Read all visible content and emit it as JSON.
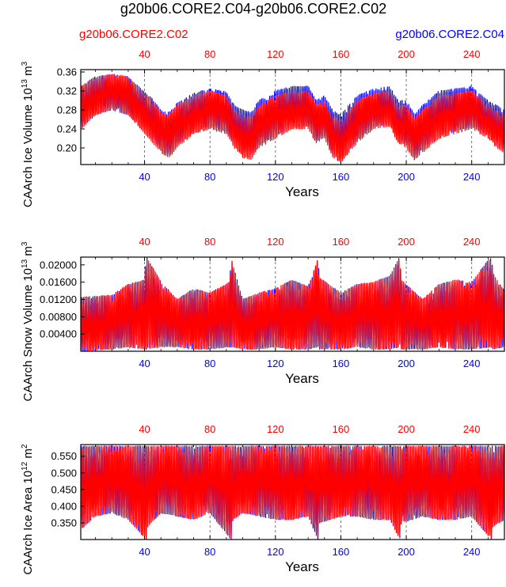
{
  "figure": {
    "title": "g20b06.CORE2.C04-g20b06.CORE2.C02",
    "legend_left": "g20b06.CORE2.C02",
    "legend_right": "g20b06.CORE2.C04",
    "colors": {
      "case_c02": "#ff0000",
      "case_c04": "#0000ff",
      "axis": "#000000"
    }
  },
  "chart_data": [
    {
      "type": "line",
      "ylabel": "CAArch Ice Volume 10",
      "ylabel_exp": "13",
      "ylabel_unit": "m",
      "ylabel_unit_exp": "3",
      "xlabel": "Years",
      "xlim": [
        1,
        260
      ],
      "ylim": [
        0.165,
        0.365
      ],
      "x_ticks": [
        40,
        80,
        120,
        160,
        200,
        240
      ],
      "y_ticks": [
        "0.20",
        "0.24",
        "0.28",
        "0.32",
        "0.36"
      ],
      "envelope_x": [
        1,
        10,
        20,
        30,
        40,
        45,
        50,
        55,
        60,
        70,
        80,
        90,
        95,
        100,
        105,
        110,
        120,
        130,
        140,
        145,
        150,
        155,
        160,
        170,
        180,
        190,
        195,
        200,
        205,
        210,
        220,
        230,
        240,
        250,
        255,
        260
      ],
      "series": [
        {
          "name": "g20b06.CORE2.C02",
          "max": [
            0.33,
            0.35,
            0.355,
            0.35,
            0.315,
            0.3,
            0.275,
            0.27,
            0.29,
            0.31,
            0.32,
            0.31,
            0.28,
            0.27,
            0.265,
            0.29,
            0.31,
            0.32,
            0.32,
            0.29,
            0.3,
            0.27,
            0.26,
            0.3,
            0.315,
            0.32,
            0.29,
            0.29,
            0.26,
            0.28,
            0.31,
            0.315,
            0.32,
            0.29,
            0.28,
            0.27
          ],
          "min": [
            0.24,
            0.27,
            0.28,
            0.27,
            0.23,
            0.21,
            0.19,
            0.18,
            0.2,
            0.23,
            0.24,
            0.23,
            0.2,
            0.18,
            0.175,
            0.2,
            0.22,
            0.24,
            0.24,
            0.21,
            0.22,
            0.18,
            0.17,
            0.21,
            0.24,
            0.245,
            0.21,
            0.2,
            0.175,
            0.19,
            0.22,
            0.23,
            0.24,
            0.22,
            0.2,
            0.19
          ]
        },
        {
          "name": "g20b06.CORE2.C04",
          "max": [
            0.33,
            0.35,
            0.355,
            0.35,
            0.317,
            0.303,
            0.28,
            0.275,
            0.295,
            0.315,
            0.325,
            0.318,
            0.29,
            0.28,
            0.275,
            0.3,
            0.32,
            0.33,
            0.33,
            0.3,
            0.31,
            0.28,
            0.27,
            0.31,
            0.325,
            0.33,
            0.3,
            0.3,
            0.27,
            0.29,
            0.32,
            0.325,
            0.33,
            0.3,
            0.29,
            0.28
          ],
          "min": [
            0.24,
            0.27,
            0.28,
            0.27,
            0.235,
            0.215,
            0.195,
            0.185,
            0.205,
            0.235,
            0.245,
            0.235,
            0.205,
            0.185,
            0.18,
            0.205,
            0.225,
            0.245,
            0.245,
            0.215,
            0.225,
            0.185,
            0.175,
            0.215,
            0.245,
            0.25,
            0.215,
            0.205,
            0.18,
            0.195,
            0.225,
            0.235,
            0.245,
            0.225,
            0.205,
            0.195
          ]
        }
      ]
    },
    {
      "type": "line",
      "ylabel": "CAArch Snow Volume 10",
      "ylabel_exp": "13",
      "ylabel_unit": "m",
      "ylabel_unit_exp": "3",
      "xlabel": "Years",
      "xlim": [
        1,
        260
      ],
      "ylim": [
        0.0,
        0.0218
      ],
      "x_ticks": [
        40,
        80,
        120,
        160,
        200,
        240
      ],
      "y_ticks": [
        "0.00400",
        "0.00800",
        "0.01200",
        "0.01600",
        "0.02000"
      ],
      "envelope_x": [
        1,
        20,
        30,
        40,
        41,
        50,
        60,
        70,
        80,
        92,
        93,
        100,
        110,
        120,
        130,
        140,
        146,
        147,
        160,
        170,
        180,
        190,
        196,
        197,
        210,
        220,
        230,
        240,
        252,
        253,
        260
      ],
      "series": [
        {
          "name": "g20b06.CORE2.C02",
          "max": [
            0.0125,
            0.013,
            0.0155,
            0.0165,
            0.022,
            0.016,
            0.012,
            0.0145,
            0.0135,
            0.016,
            0.0215,
            0.012,
            0.0135,
            0.0145,
            0.0165,
            0.015,
            0.0215,
            0.017,
            0.0135,
            0.0155,
            0.016,
            0.0175,
            0.022,
            0.0165,
            0.012,
            0.0155,
            0.0165,
            0.016,
            0.022,
            0.018,
            0.014
          ],
          "min": [
            0.0,
            0.0005,
            0.001,
            0.0005,
            0.0005,
            0.001,
            0.001,
            0.0005,
            0.0005,
            0.001,
            0.001,
            0.0005,
            0.0005,
            0.001,
            0.0005,
            0.0005,
            0.001,
            0.0005,
            0.0005,
            0.001,
            0.0005,
            0.0005,
            0.001,
            0.0005,
            0.0005,
            0.001,
            0.0005,
            0.0005,
            0.001,
            0.0005,
            0.001
          ]
        },
        {
          "name": "g20b06.CORE2.C04",
          "max": [
            0.0125,
            0.013,
            0.0155,
            0.0165,
            0.022,
            0.016,
            0.012,
            0.0145,
            0.0135,
            0.016,
            0.0215,
            0.012,
            0.0135,
            0.0145,
            0.0165,
            0.015,
            0.0215,
            0.017,
            0.0135,
            0.0155,
            0.016,
            0.0175,
            0.022,
            0.0165,
            0.012,
            0.0155,
            0.0165,
            0.016,
            0.022,
            0.018,
            0.014
          ],
          "min": [
            0.0,
            0.0005,
            0.001,
            0.0005,
            0.0005,
            0.001,
            0.001,
            0.0005,
            0.0005,
            0.001,
            0.001,
            0.0005,
            0.0005,
            0.001,
            0.0005,
            0.0005,
            0.001,
            0.0005,
            0.0005,
            0.001,
            0.0005,
            0.0005,
            0.001,
            0.0005,
            0.0005,
            0.001,
            0.0005,
            0.0005,
            0.001,
            0.0005,
            0.001
          ]
        }
      ]
    },
    {
      "type": "line",
      "ylabel": "CAArch Ice Area 10",
      "ylabel_exp": "12",
      "ylabel_unit": "m",
      "ylabel_unit_exp": "2",
      "xlabel": "Years",
      "xlim": [
        1,
        260
      ],
      "ylim": [
        0.3,
        0.585
      ],
      "x_ticks": [
        40,
        80,
        120,
        160,
        200,
        240
      ],
      "y_ticks": [
        "0.350",
        "0.400",
        "0.450",
        "0.500",
        "0.550"
      ],
      "envelope_x": [
        1,
        10,
        20,
        30,
        41,
        42,
        50,
        60,
        70,
        80,
        93,
        94,
        100,
        110,
        120,
        130,
        140,
        146,
        147,
        160,
        170,
        180,
        190,
        196,
        197,
        210,
        220,
        230,
        240,
        252,
        253,
        260
      ],
      "series": [
        {
          "name": "g20b06.CORE2.C02",
          "max": [
            0.58,
            0.58,
            0.58,
            0.58,
            0.58,
            0.58,
            0.58,
            0.58,
            0.58,
            0.58,
            0.58,
            0.58,
            0.58,
            0.58,
            0.58,
            0.58,
            0.58,
            0.58,
            0.58,
            0.58,
            0.58,
            0.58,
            0.58,
            0.58,
            0.58,
            0.58,
            0.58,
            0.58,
            0.58,
            0.58,
            0.58,
            0.58
          ],
          "min": [
            0.33,
            0.37,
            0.38,
            0.36,
            0.3,
            0.34,
            0.38,
            0.37,
            0.36,
            0.38,
            0.3,
            0.36,
            0.38,
            0.37,
            0.36,
            0.36,
            0.37,
            0.3,
            0.35,
            0.37,
            0.37,
            0.36,
            0.36,
            0.3,
            0.35,
            0.37,
            0.36,
            0.36,
            0.37,
            0.3,
            0.34,
            0.36
          ]
        },
        {
          "name": "g20b06.CORE2.C04",
          "max": [
            0.58,
            0.58,
            0.58,
            0.58,
            0.58,
            0.58,
            0.58,
            0.58,
            0.58,
            0.58,
            0.58,
            0.58,
            0.58,
            0.58,
            0.58,
            0.58,
            0.58,
            0.58,
            0.58,
            0.58,
            0.58,
            0.58,
            0.58,
            0.58,
            0.58,
            0.58,
            0.58,
            0.58,
            0.58,
            0.58,
            0.58,
            0.58
          ],
          "min": [
            0.33,
            0.37,
            0.38,
            0.36,
            0.3,
            0.34,
            0.38,
            0.37,
            0.36,
            0.38,
            0.3,
            0.36,
            0.38,
            0.37,
            0.36,
            0.36,
            0.37,
            0.3,
            0.35,
            0.37,
            0.37,
            0.36,
            0.36,
            0.3,
            0.35,
            0.37,
            0.36,
            0.36,
            0.37,
            0.3,
            0.34,
            0.36
          ]
        }
      ]
    }
  ]
}
